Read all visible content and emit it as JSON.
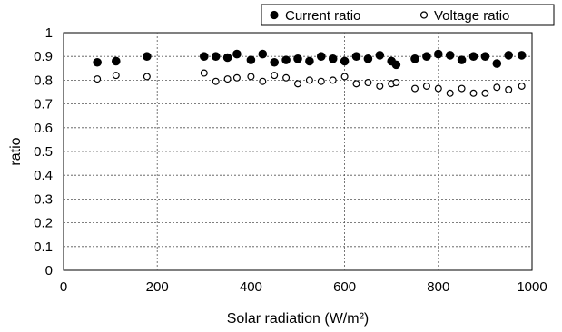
{
  "chart_data": {
    "type": "scatter",
    "xlabel": "Solar radiation  (W/m²)",
    "ylabel": "ratio",
    "xlim": [
      0,
      1000
    ],
    "ylim": [
      0,
      1
    ],
    "xticks": [
      "0",
      "200",
      "400",
      "600",
      "800",
      "1000"
    ],
    "yticks": [
      "0",
      "0.1",
      "0.2",
      "0.3",
      "0.4",
      "0.5",
      "0.6",
      "0.7",
      "0.8",
      "0.9",
      "1"
    ],
    "grid": "dashed horizontal and vertical",
    "legend_position": "top-right",
    "series": [
      {
        "name": "Current ratio",
        "marker": "filled-circle",
        "color": "#000000",
        "points": [
          [
            72,
            0.875
          ],
          [
            112,
            0.88
          ],
          [
            178,
            0.9
          ],
          [
            300,
            0.9
          ],
          [
            325,
            0.9
          ],
          [
            350,
            0.895
          ],
          [
            370,
            0.91
          ],
          [
            400,
            0.885
          ],
          [
            425,
            0.91
          ],
          [
            450,
            0.875
          ],
          [
            475,
            0.885
          ],
          [
            500,
            0.89
          ],
          [
            525,
            0.88
          ],
          [
            550,
            0.9
          ],
          [
            575,
            0.89
          ],
          [
            600,
            0.88
          ],
          [
            625,
            0.9
          ],
          [
            650,
            0.89
          ],
          [
            675,
            0.905
          ],
          [
            700,
            0.88
          ],
          [
            710,
            0.865
          ],
          [
            750,
            0.89
          ],
          [
            775,
            0.9
          ],
          [
            800,
            0.91
          ],
          [
            825,
            0.905
          ],
          [
            850,
            0.885
          ],
          [
            875,
            0.9
          ],
          [
            900,
            0.9
          ],
          [
            925,
            0.87
          ],
          [
            950,
            0.905
          ],
          [
            978,
            0.905
          ]
        ]
      },
      {
        "name": "Voltage ratio",
        "marker": "open-circle",
        "color": "#000000",
        "points": [
          [
            72,
            0.805
          ],
          [
            112,
            0.82
          ],
          [
            178,
            0.815
          ],
          [
            300,
            0.83
          ],
          [
            325,
            0.795
          ],
          [
            350,
            0.805
          ],
          [
            370,
            0.81
          ],
          [
            400,
            0.815
          ],
          [
            425,
            0.795
          ],
          [
            450,
            0.82
          ],
          [
            475,
            0.81
          ],
          [
            500,
            0.785
          ],
          [
            525,
            0.8
          ],
          [
            550,
            0.795
          ],
          [
            575,
            0.8
          ],
          [
            600,
            0.815
          ],
          [
            625,
            0.785
          ],
          [
            650,
            0.79
          ],
          [
            675,
            0.775
          ],
          [
            700,
            0.785
          ],
          [
            710,
            0.79
          ],
          [
            750,
            0.765
          ],
          [
            775,
            0.775
          ],
          [
            800,
            0.765
          ],
          [
            825,
            0.745
          ],
          [
            850,
            0.765
          ],
          [
            875,
            0.745
          ],
          [
            900,
            0.745
          ],
          [
            925,
            0.77
          ],
          [
            950,
            0.76
          ],
          [
            978,
            0.775
          ]
        ]
      }
    ]
  }
}
